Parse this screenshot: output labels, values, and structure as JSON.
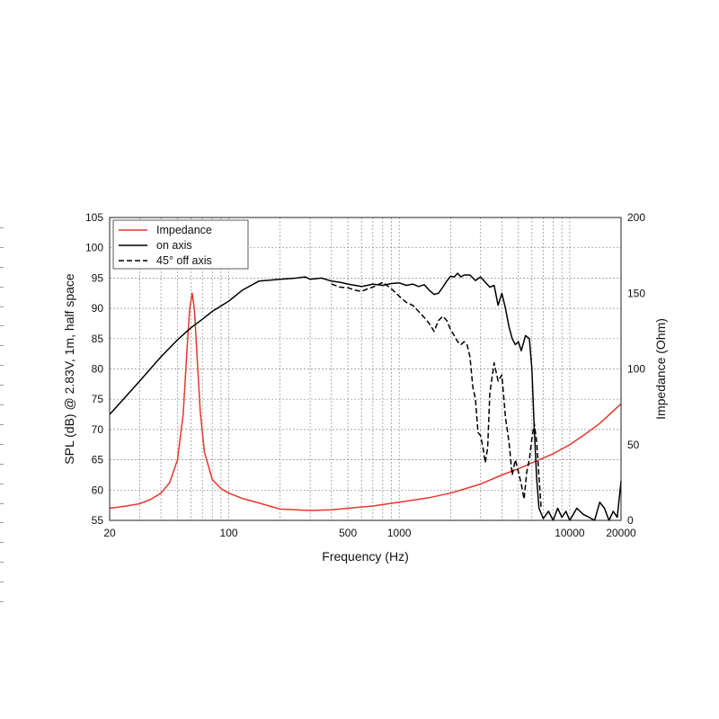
{
  "chart_data": {
    "type": "line",
    "xlabel": "Frequency (Hz)",
    "ylabel": "SPL (dB) @ 2.83V, 1m, half space",
    "y2label": "Impedance (Ohm)",
    "xscale": "log",
    "xlim": [
      20,
      20000
    ],
    "ylim": [
      55,
      105
    ],
    "y2lim": [
      0,
      200
    ],
    "grid": true,
    "legend_position": "top-left",
    "x_tick_labels": [
      "20",
      "100",
      "500",
      "1000",
      "10000",
      "20000"
    ],
    "x_tick_values": [
      20,
      100,
      500,
      1000,
      10000,
      20000
    ],
    "y_tick_labels": [
      "55",
      "60",
      "65",
      "70",
      "75",
      "80",
      "85",
      "90",
      "95",
      "100",
      "105"
    ],
    "y2_tick_labels": [
      "0",
      "50",
      "100",
      "150",
      "200"
    ],
    "series": [
      {
        "name": "Impedance",
        "axis": "right",
        "color": "#e8372c",
        "dash": "solid",
        "x": [
          20,
          25,
          30,
          35,
          40,
          45,
          50,
          54,
          57,
          59,
          61,
          63,
          65,
          68,
          72,
          80,
          90,
          100,
          120,
          150,
          200,
          300,
          400,
          500,
          700,
          1000,
          1500,
          2000,
          3000,
          4000,
          5000,
          6000,
          8000,
          10000,
          12000,
          15000,
          20000
        ],
        "values": [
          8,
          9.5,
          11,
          14,
          18,
          25,
          40,
          70,
          115,
          140,
          150,
          138,
          110,
          72,
          45,
          27,
          21,
          18,
          14.5,
          11.5,
          7.5,
          6.5,
          7,
          8,
          9.5,
          12,
          15,
          18,
          24,
          30,
          34,
          38,
          44,
          50,
          56,
          64,
          77
        ]
      },
      {
        "name": "on axis",
        "axis": "left",
        "color": "#000000",
        "dash": "solid",
        "x": [
          20,
          25,
          30,
          40,
          50,
          60,
          70,
          80,
          100,
          120,
          150,
          200,
          250,
          280,
          300,
          350,
          400,
          450,
          500,
          550,
          600,
          650,
          700,
          800,
          900,
          1000,
          1100,
          1200,
          1300,
          1400,
          1500,
          1600,
          1700,
          1800,
          1900,
          2000,
          2100,
          2200,
          2300,
          2400,
          2600,
          2800,
          3000,
          3200,
          3400,
          3600,
          3800,
          4000,
          4200,
          4400,
          4600,
          4800,
          5000,
          5200,
          5500,
          5800,
          6000,
          6200,
          6400,
          6600,
          7000,
          7500,
          8000,
          8500,
          9000,
          9500,
          10000,
          11000,
          12000,
          13000,
          14000,
          15000,
          16000,
          17000,
          18000,
          19000,
          20000
        ],
        "values": [
          72.5,
          75.5,
          78,
          82,
          84.8,
          86.8,
          88.2,
          89.5,
          91.2,
          93,
          94.5,
          94.8,
          95,
          95.2,
          94.8,
          95,
          94.5,
          94.3,
          94,
          93.8,
          93.6,
          93.8,
          94,
          93.8,
          94.1,
          94.2,
          93.8,
          94,
          93.6,
          93.9,
          93,
          92.3,
          92.5,
          93.5,
          94.5,
          95.3,
          95.2,
          95.8,
          95.2,
          95.5,
          95.5,
          94.6,
          95.2,
          94.3,
          93.5,
          93.8,
          90.5,
          92.5,
          90,
          87,
          85,
          84,
          84.5,
          83,
          85.5,
          85,
          80,
          70,
          62,
          57,
          55.3,
          56.5,
          55,
          57,
          55.5,
          56.5,
          55,
          57,
          56,
          55.5,
          55,
          58,
          57,
          55,
          56.5,
          55.5,
          61.5
        ]
      },
      {
        "name": "45° off axis",
        "axis": "left",
        "color": "#000000",
        "dash": "dashed",
        "x": [
          400,
          450,
          500,
          550,
          600,
          650,
          700,
          800,
          900,
          1000,
          1100,
          1200,
          1300,
          1400,
          1500,
          1600,
          1700,
          1800,
          1900,
          2000,
          2100,
          2200,
          2300,
          2400,
          2500,
          2600,
          2700,
          2800,
          2900,
          3000,
          3100,
          3200,
          3300,
          3400,
          3600,
          3800,
          4000,
          4200,
          4400,
          4600,
          4800,
          5000,
          5200,
          5400,
          5600,
          5800,
          6000,
          6200,
          6400,
          6800
        ],
        "values": [
          94,
          93.5,
          93.4,
          93,
          92.8,
          93.2,
          93.5,
          94.3,
          93.2,
          92,
          91,
          90.5,
          89.5,
          88.5,
          87.5,
          86.2,
          88,
          88.7,
          88,
          86.5,
          85.5,
          84.5,
          84,
          84.5,
          84,
          82,
          77,
          75,
          69.5,
          69,
          67,
          64.5,
          67,
          76,
          81,
          78,
          79,
          72,
          68,
          62.5,
          65,
          63,
          61,
          58.5,
          63,
          65,
          68.5,
          71,
          68,
          57
        ]
      }
    ]
  }
}
